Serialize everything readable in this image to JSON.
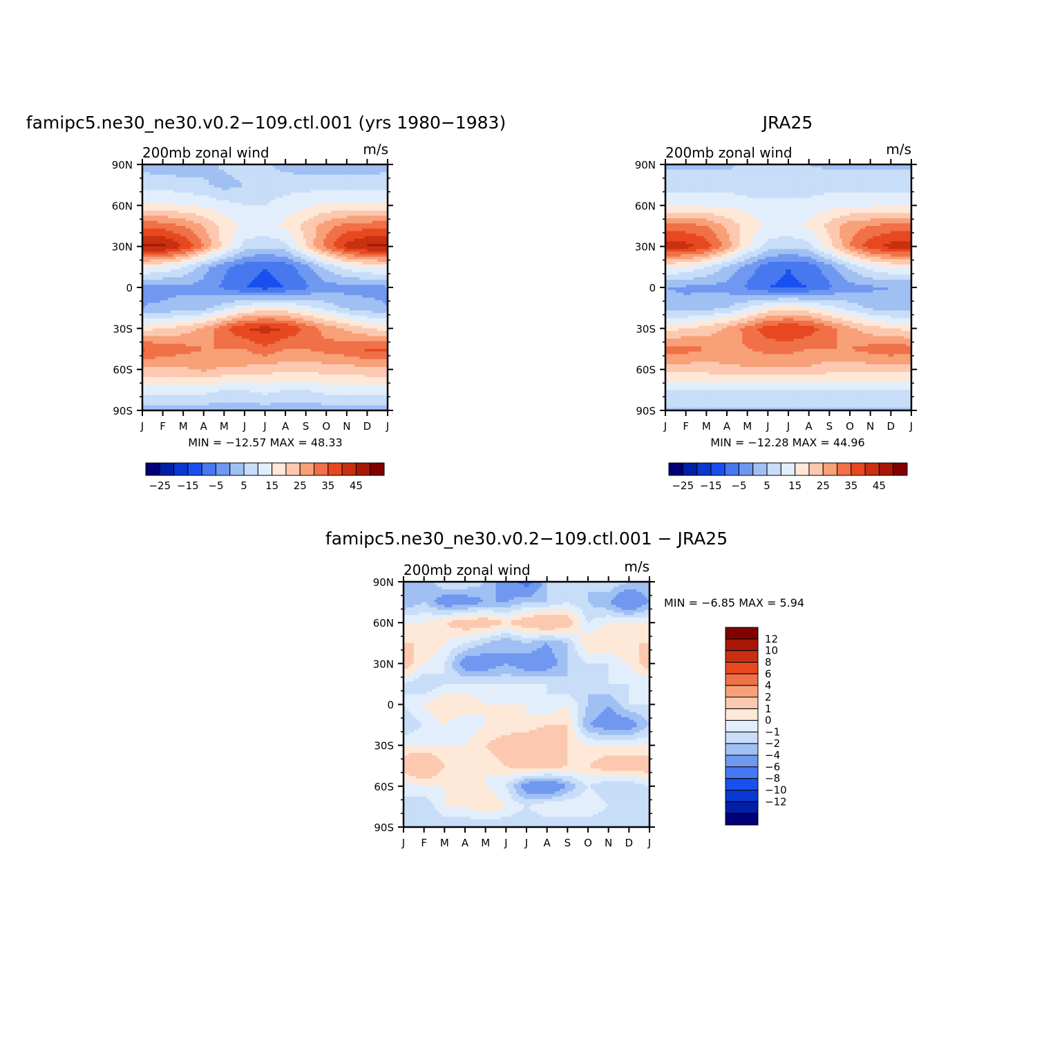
{
  "panels": [
    {
      "id": "model",
      "title": "famipc5.ne30_ne30.v0.2−109.ctl.001 (yrs 1980−1983)",
      "left_label": "200mb zonal wind",
      "right_label": "m/s",
      "stats": "MIN = −12.57 MAX = 48.33"
    },
    {
      "id": "obs",
      "title": "JRA25",
      "left_label": "200mb zonal wind",
      "right_label": "m/s",
      "stats": "MIN = −12.28 MAX = 44.96"
    },
    {
      "id": "diff",
      "title": "famipc5.ne30_ne30.v0.2−109.ctl.001 − JRA25",
      "left_label": "200mb zonal wind",
      "right_label": "m/s",
      "stats": "MIN = −6.85 MAX = 5.94"
    }
  ],
  "chart_data": [
    {
      "type": "heatmap",
      "title": "famipc5.ne30_ne30.v0.2−109.ctl.001 (yrs 1980−1983)",
      "xlabel": "",
      "ylabel": "",
      "variable": "200mb zonal wind",
      "units": "m/s",
      "x_ticks": [
        "J",
        "F",
        "M",
        "A",
        "M",
        "J",
        "J",
        "A",
        "S",
        "O",
        "N",
        "D",
        "J"
      ],
      "y_ticks": [
        "90N",
        "60N",
        "30N",
        "0",
        "30S",
        "60S",
        "90S"
      ],
      "y_range": [
        -90,
        90
      ],
      "min": -12.57,
      "max": 48.33,
      "colorbar": {
        "orientation": "horizontal",
        "tick_labels": [
          "−25",
          "−15",
          "−5",
          "5",
          "15",
          "25",
          "35",
          "45"
        ],
        "levels": [
          -30,
          -25,
          -20,
          -15,
          -10,
          -5,
          0,
          5,
          10,
          15,
          20,
          25,
          30,
          35,
          40,
          45,
          50
        ],
        "colors": [
          "#000078",
          "#0020a8",
          "#0838d0",
          "#1850f0",
          "#4878f0",
          "#7098f0",
          "#a0c0f4",
          "#c8ddf8",
          "#e2eefc",
          "#fee8d8",
          "#fcc8b0",
          "#f8a078",
          "#f07048",
          "#e84820",
          "#c83010",
          "#a81808",
          "#800000"
        ]
      },
      "lat": [
        90,
        75,
        60,
        45,
        30,
        15,
        0,
        -15,
        -30,
        -45,
        -60,
        -75,
        -90
      ],
      "month_values": [
        [
          3,
          2,
          2,
          3,
          6,
          8,
          6,
          3,
          2,
          2,
          2,
          2
        ],
        [
          8,
          8,
          7,
          6,
          3,
          5,
          7,
          8,
          8,
          8,
          8,
          8
        ],
        [
          16,
          16,
          15,
          14,
          12,
          10,
          10,
          12,
          14,
          16,
          16,
          16
        ],
        [
          34,
          33,
          30,
          25,
          18,
          14,
          14,
          16,
          22,
          28,
          32,
          33
        ],
        [
          46,
          47,
          40,
          30,
          18,
          8,
          6,
          8,
          20,
          32,
          42,
          46
        ],
        [
          16,
          14,
          10,
          2,
          -4,
          -8,
          -10,
          -8,
          -2,
          6,
          12,
          15
        ],
        [
          -1,
          -2,
          -1,
          -2,
          -6,
          -10,
          -12,
          -10,
          -6,
          -2,
          -2,
          -2
        ],
        [
          0,
          1,
          2,
          3,
          8,
          14,
          16,
          16,
          12,
          8,
          4,
          2
        ],
        [
          18,
          20,
          22,
          26,
          34,
          40,
          42,
          40,
          34,
          28,
          24,
          20
        ],
        [
          36,
          34,
          32,
          30,
          30,
          30,
          34,
          30,
          30,
          32,
          34,
          36
        ],
        [
          24,
          24,
          24,
          26,
          24,
          24,
          22,
          22,
          22,
          22,
          22,
          24
        ],
        [
          12,
          12,
          12,
          12,
          10,
          10,
          12,
          10,
          10,
          12,
          12,
          12
        ],
        [
          2,
          2,
          2,
          2,
          2,
          2,
          2,
          2,
          2,
          2,
          2,
          2
        ]
      ]
    },
    {
      "type": "heatmap",
      "title": "JRA25",
      "xlabel": "",
      "ylabel": "",
      "variable": "200mb zonal wind",
      "units": "m/s",
      "x_ticks": [
        "J",
        "F",
        "M",
        "A",
        "M",
        "J",
        "J",
        "A",
        "S",
        "O",
        "N",
        "D",
        "J"
      ],
      "y_ticks": [
        "90N",
        "60N",
        "30N",
        "0",
        "30S",
        "60S",
        "90S"
      ],
      "y_range": [
        -90,
        90
      ],
      "min": -12.28,
      "max": 44.96,
      "colorbar": {
        "orientation": "horizontal",
        "tick_labels": [
          "−25",
          "−15",
          "−5",
          "5",
          "15",
          "25",
          "35",
          "45"
        ],
        "levels": [
          -30,
          -25,
          -20,
          -15,
          -10,
          -5,
          0,
          5,
          10,
          15,
          20,
          25,
          30,
          35,
          40,
          45,
          50
        ],
        "colors": [
          "#000078",
          "#0020a8",
          "#0838d0",
          "#1850f0",
          "#4878f0",
          "#7098f0",
          "#a0c0f4",
          "#c8ddf8",
          "#e2eefc",
          "#fee8d8",
          "#fcc8b0",
          "#f8a078",
          "#f07048",
          "#e84820",
          "#c83010",
          "#a81808",
          "#800000"
        ]
      },
      "lat": [
        90,
        75,
        60,
        45,
        30,
        15,
        0,
        -15,
        -30,
        -45,
        -60,
        -75,
        -90
      ],
      "month_values": [
        [
          4,
          4,
          4,
          4,
          6,
          6,
          6,
          5,
          4,
          4,
          4,
          4
        ],
        [
          8,
          8,
          8,
          8,
          6,
          6,
          6,
          7,
          8,
          8,
          8,
          8
        ],
        [
          14,
          14,
          14,
          14,
          13,
          12,
          12,
          12,
          13,
          14,
          14,
          14
        ],
        [
          32,
          32,
          30,
          24,
          18,
          14,
          14,
          16,
          22,
          28,
          30,
          32
        ],
        [
          42,
          42,
          38,
          28,
          16,
          8,
          6,
          8,
          18,
          30,
          38,
          42
        ],
        [
          16,
          14,
          10,
          4,
          -2,
          -8,
          -10,
          -8,
          -2,
          6,
          12,
          15
        ],
        [
          0,
          -1,
          -1,
          -2,
          -6,
          -10,
          -11,
          -10,
          -6,
          -2,
          -1,
          0
        ],
        [
          2,
          2,
          3,
          5,
          10,
          16,
          18,
          16,
          12,
          8,
          4,
          2
        ],
        [
          18,
          20,
          22,
          26,
          32,
          38,
          40,
          38,
          32,
          26,
          22,
          20
        ],
        [
          32,
          32,
          30,
          28,
          30,
          32,
          32,
          30,
          30,
          30,
          32,
          34
        ],
        [
          22,
          22,
          22,
          24,
          24,
          24,
          24,
          24,
          22,
          22,
          22,
          22
        ],
        [
          10,
          10,
          10,
          10,
          10,
          10,
          10,
          10,
          10,
          10,
          10,
          10
        ],
        [
          4,
          4,
          4,
          4,
          4,
          4,
          4,
          4,
          4,
          4,
          4,
          4
        ]
      ]
    },
    {
      "type": "heatmap",
      "title": "famipc5.ne30_ne30.v0.2−109.ctl.001 − JRA25",
      "xlabel": "",
      "ylabel": "",
      "variable": "200mb zonal wind",
      "units": "m/s",
      "x_ticks": [
        "J",
        "F",
        "M",
        "A",
        "M",
        "J",
        "J",
        "A",
        "S",
        "O",
        "N",
        "D",
        "J"
      ],
      "y_ticks": [
        "90N",
        "60N",
        "30N",
        "0",
        "30S",
        "60S",
        "90S"
      ],
      "y_range": [
        -90,
        90
      ],
      "min": -6.85,
      "max": 5.94,
      "colorbar": {
        "orientation": "vertical",
        "tick_labels": [
          "12",
          "10",
          "8",
          "6",
          "4",
          "2",
          "1",
          "0",
          "−1",
          "−2",
          "−4",
          "−6",
          "−8",
          "−10",
          "−12"
        ],
        "levels": [
          -14,
          -12,
          -10,
          -8,
          -6,
          -4,
          -2,
          -1,
          0,
          1,
          2,
          4,
          6,
          8,
          10,
          12,
          14
        ],
        "colors": [
          "#000078",
          "#0020a8",
          "#0838d0",
          "#1850f0",
          "#4878f0",
          "#7098f0",
          "#a0c0f4",
          "#c8ddf8",
          "#e2eefc",
          "#fee8d8",
          "#fcc8b0",
          "#f8a078",
          "#f07048",
          "#e84820",
          "#c83010",
          "#a81808",
          "#800000"
        ]
      },
      "lat": [
        90,
        75,
        60,
        45,
        30,
        15,
        0,
        -15,
        -30,
        -45,
        -60,
        -75,
        -90
      ],
      "month_values": [
        [
          -1,
          -2,
          0,
          0,
          -1,
          -3,
          -5,
          -1,
          0,
          -1,
          0,
          -1
        ],
        [
          -2,
          -1,
          -3,
          -3,
          -2,
          -2,
          -1,
          -1,
          0,
          -1,
          -2,
          -4
        ],
        [
          1,
          1,
          2,
          3,
          3,
          2,
          3,
          4,
          3,
          0,
          1,
          1
        ],
        [
          2,
          2,
          1,
          0,
          -1,
          -2,
          -1,
          -2,
          -1,
          2,
          2,
          2
        ],
        [
          3,
          1,
          0,
          -3,
          -3,
          -2,
          -3,
          -3,
          -1,
          0,
          0,
          1
        ],
        [
          0,
          -1,
          0,
          0,
          0,
          0,
          0,
          0,
          -1,
          -1,
          0,
          0
        ],
        [
          0,
          1,
          2,
          2,
          1,
          1,
          1,
          0,
          1,
          -1,
          -2,
          0
        ],
        [
          -1,
          0,
          1,
          0,
          1,
          1,
          1,
          2,
          2,
          -2,
          -3,
          -3
        ],
        [
          1,
          1,
          1,
          1,
          2,
          3,
          4,
          4,
          2,
          1,
          1,
          1
        ],
        [
          3,
          4,
          2,
          2,
          1,
          2,
          3,
          3,
          2,
          2,
          3,
          3
        ],
        [
          0,
          1,
          1,
          1,
          1,
          0,
          -3,
          -4,
          -2,
          0,
          -1,
          -1
        ],
        [
          0,
          -1,
          1,
          1,
          2,
          1,
          0,
          1,
          1,
          1,
          0,
          0
        ],
        [
          -1,
          -1,
          -1,
          -1,
          -1,
          -1,
          -1,
          -1,
          -1,
          -1,
          -1,
          -1
        ]
      ]
    }
  ]
}
